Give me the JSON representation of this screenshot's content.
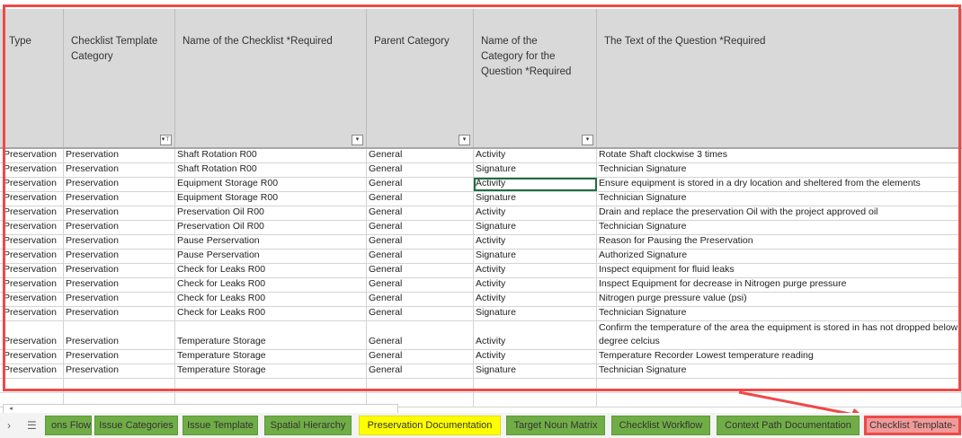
{
  "headers": [
    {
      "label": "Type",
      "filter": ""
    },
    {
      "label": "Checklist Template Category",
      "filter": "filter-applied"
    },
    {
      "label": "Name of the Checklist *Required",
      "filter": "dropdown"
    },
    {
      "label": "Parent Category",
      "filter": "dropdown"
    },
    {
      "label": "Name of the Category for the Question *Required",
      "filter": "dropdown"
    },
    {
      "label": "The Text of the Question *Required",
      "filter": ""
    }
  ],
  "rows": [
    [
      "Preservation",
      "Preservation",
      "Shaft Rotation R00",
      "General",
      "Activity",
      "Rotate Shaft clockwise 3 times"
    ],
    [
      "Preservation",
      "Preservation",
      "Shaft Rotation R00",
      "General",
      "Signature",
      "Technician Signature"
    ],
    [
      "Preservation",
      "Preservation",
      "Equipment Storage R00",
      "General",
      "Activity",
      "Ensure equipment is stored in a dry location and sheltered from the elements"
    ],
    [
      "Preservation",
      "Preservation",
      "Equipment Storage R00",
      "General",
      "Signature",
      "Technician Signature"
    ],
    [
      "Preservation",
      "Preservation",
      "Preservation Oil R00",
      "General",
      "Activity",
      "Drain and replace the preservation Oil with the project approved oil"
    ],
    [
      "Preservation",
      "Preservation",
      "Preservation Oil R00",
      "General",
      "Signature",
      "Technician Signature"
    ],
    [
      "Preservation",
      "Preservation",
      "Pause Perservation",
      "General",
      "Activity",
      "Reason for Pausing the Preservation"
    ],
    [
      "Preservation",
      "Preservation",
      "Pause Perservation",
      "General",
      "Signature",
      "Authorized Signature"
    ],
    [
      "Preservation",
      "Preservation",
      "Check for Leaks R00",
      "General",
      "Activity",
      "Inspect equipment for fluid leaks"
    ],
    [
      "Preservation",
      "Preservation",
      "Check for Leaks R00",
      "General",
      "Activity",
      "Inspect Equipment for decrease in Nitrogen purge pressure"
    ],
    [
      "Preservation",
      "Preservation",
      "Check for Leaks R00",
      "General",
      "Activity",
      "Nitrogen purge pressure value (psi)"
    ],
    [
      "Preservation",
      "Preservation",
      "Check for Leaks R00",
      "General",
      "Signature",
      "Technician Signature"
    ],
    [
      "Preservation",
      "Preservation",
      "Temperature Storage",
      "General",
      "Activity",
      "Confirm the temperature of the area the equipment is stored in has not dropped below degree celcius"
    ],
    [
      "Preservation",
      "Preservation",
      "Temperature Storage",
      "General",
      "Activity",
      "Temperature Recorder Lowest temperature reading"
    ],
    [
      "Preservation",
      "Preservation",
      "Temperature Storage",
      "General",
      "Signature",
      "Technician Signature"
    ],
    [
      "",
      "",
      "",
      "",
      "",
      ""
    ],
    [
      "",
      "",
      "",
      "",
      "",
      ""
    ]
  ],
  "selected_cell": {
    "row": 2,
    "col": 4
  },
  "sheet_tabs": [
    {
      "label": "ons Flow",
      "color": "#70ad47"
    },
    {
      "label": "Issue Categories",
      "color": "#70ad47"
    },
    {
      "label": "Issue Template",
      "color": "#70ad47"
    },
    {
      "label": "Spatial Hierarchy",
      "color": "#70ad47"
    },
    {
      "label": "Preservation Documentation",
      "color": "#ffff00"
    },
    {
      "label": "Target Noun Matrix",
      "color": "#70ad47"
    },
    {
      "label": "Checklist Workflow",
      "color": "#70ad47"
    },
    {
      "label": "Context Path Documentation",
      "color": "#70ad47"
    },
    {
      "label": "Checklist Template-",
      "color": "#f29a9a",
      "active": true
    }
  ],
  "nav": {
    "next": "›",
    "menu": "☰",
    "scroll_left": "◂"
  },
  "annotation_color": "#f04848"
}
